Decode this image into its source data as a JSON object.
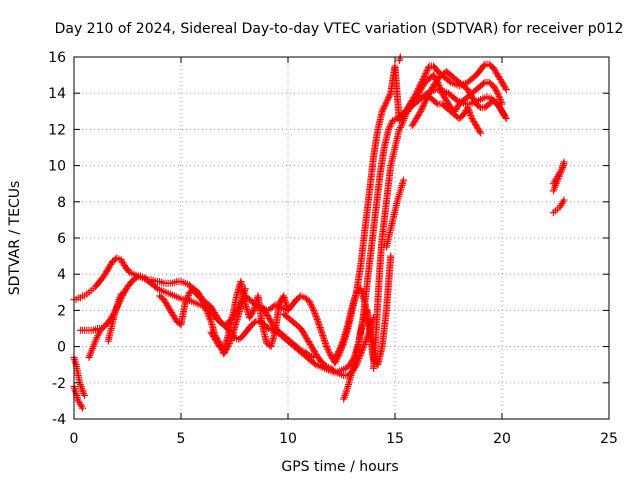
{
  "chart_data": {
    "type": "scatter",
    "title": "Day 210 of 2024, Sidereal Day-to-day VTEC variation (SDTVAR) for receiver p012",
    "xlabel": "GPS time / hours",
    "ylabel": "SDTVAR / TECUs",
    "xlim": [
      0,
      25
    ],
    "ylim": [
      -4,
      16
    ],
    "x_ticks": [
      "0",
      "5",
      "10",
      "15",
      "20",
      "25"
    ],
    "y_ticks": [
      "-4",
      "-2",
      "0",
      "2",
      "4",
      "6",
      "8",
      "10",
      "12",
      "14",
      "16"
    ],
    "grid": true,
    "marker": "+",
    "color": "#ff0000",
    "series": [
      {
        "x": [
          0.0,
          0.1,
          0.2,
          0.3,
          0.4,
          0.5,
          0.6,
          0.7,
          0.8,
          0.9,
          1.0,
          1.2,
          1.4,
          1.6,
          1.8,
          2.0,
          2.2,
          2.4,
          2.6,
          2.8,
          3.0,
          3.2,
          3.4,
          3.6,
          3.8,
          4.0,
          4.2,
          4.4,
          4.6,
          4.8,
          5.0,
          5.2,
          5.4,
          5.6,
          5.8,
          6.0,
          6.2,
          6.4,
          6.6,
          6.8,
          7.0,
          7.2,
          7.4,
          7.6,
          7.8,
          8.0,
          8.2,
          8.4,
          8.6,
          8.8,
          9.0,
          9.2,
          9.4,
          9.6,
          9.8,
          10.0,
          10.2,
          10.4,
          10.6,
          10.8,
          11.0,
          11.2,
          11.4,
          11.6,
          11.8,
          12.0,
          12.2,
          12.4,
          12.6,
          12.8,
          13.0,
          13.2,
          13.4,
          13.6,
          13.8,
          14.0,
          14.2,
          14.4,
          14.6,
          14.8,
          15.0,
          15.2,
          15.4,
          15.6,
          15.8,
          16.0,
          16.2,
          16.4,
          16.6,
          16.8,
          17.0,
          17.2,
          17.4,
          17.6,
          17.8,
          18.0,
          18.2,
          18.4,
          18.6,
          18.8,
          19.0,
          19.2,
          19.4,
          19.6,
          19.8,
          20.0,
          20.2
        ],
        "y": [
          2.6,
          2.6,
          2.7,
          2.7,
          2.8,
          2.8,
          2.9,
          3.0,
          3.1,
          3.2,
          3.3,
          3.6,
          3.9,
          4.3,
          4.7,
          4.9,
          4.8,
          4.4,
          4.1,
          4.0,
          3.9,
          3.8,
          3.7,
          3.7,
          3.6,
          3.6,
          3.5,
          3.5,
          3.5,
          3.6,
          3.6,
          3.5,
          3.4,
          3.1,
          2.8,
          2.6,
          2.4,
          2.2,
          1.8,
          1.4,
          1.2,
          1.3,
          1.6,
          2.0,
          2.4,
          2.8,
          2.6,
          2.4,
          2.2,
          2.1,
          2.0,
          2.1,
          2.3,
          2.2,
          2.1,
          2.0,
          2.3,
          2.6,
          2.8,
          2.7,
          2.5,
          2.0,
          1.4,
          0.7,
          0.0,
          -0.5,
          -0.9,
          -0.4,
          0.2,
          1.0,
          2.0,
          3.0,
          4.5,
          6.5,
          8.5,
          10.5,
          12.0,
          13.0,
          13.5,
          14.0,
          15.5,
          12.5,
          12.8,
          13.2,
          13.6,
          14.0,
          14.5,
          15.0,
          15.5,
          15.5,
          15.2,
          15.0,
          14.8,
          14.6,
          14.5,
          14.4,
          14.5,
          14.6,
          14.8,
          15.0,
          15.3,
          15.6,
          15.6,
          15.4,
          15.0,
          14.6,
          14.2
        ]
      },
      {
        "x": [
          0.3,
          0.5,
          0.7,
          0.9,
          1.1,
          1.3,
          1.5,
          1.7,
          1.9,
          2.1,
          2.3,
          2.5,
          2.7,
          2.9,
          3.1,
          3.3,
          3.5,
          3.7,
          3.9,
          4.1,
          4.3,
          4.5,
          4.7,
          4.9,
          5.1,
          5.3,
          5.5,
          5.7,
          5.9,
          6.1,
          6.3,
          6.5,
          6.7,
          6.9,
          7.1,
          7.3,
          7.5,
          7.7,
          7.9,
          8.1,
          8.3,
          8.5,
          8.7,
          8.9,
          9.1,
          9.3,
          9.5,
          9.7,
          9.9,
          10.1,
          10.3,
          10.5,
          10.7,
          10.9,
          11.1,
          11.3,
          11.5,
          11.7,
          11.9,
          12.1,
          12.3,
          12.5,
          12.7,
          12.9,
          13.1,
          13.3,
          13.5,
          13.7,
          13.9,
          14.1,
          14.3,
          14.5,
          14.7,
          14.9,
          15.1,
          15.3,
          15.5,
          15.7,
          15.9,
          16.1,
          16.3,
          16.5,
          16.7,
          16.9,
          17.1,
          17.3,
          17.5,
          17.7,
          17.9,
          18.1,
          18.3,
          18.5,
          18.7,
          18.9,
          19.1,
          19.3,
          19.5,
          19.7,
          19.9,
          20.1
        ],
        "y": [
          0.9,
          0.9,
          0.9,
          0.9,
          1.0,
          1.0,
          1.2,
          1.5,
          1.9,
          2.4,
          2.9,
          3.3,
          3.6,
          3.8,
          3.9,
          3.8,
          3.6,
          3.4,
          3.2,
          3.1,
          3.0,
          2.9,
          2.8,
          2.7,
          2.6,
          2.6,
          2.5,
          2.4,
          2.3,
          2.2,
          2.0,
          1.8,
          1.5,
          1.3,
          1.1,
          0.8,
          0.5,
          0.4,
          0.6,
          0.9,
          1.2,
          1.4,
          1.4,
          1.2,
          1.0,
          0.9,
          0.8,
          0.6,
          0.4,
          0.2,
          0.0,
          -0.2,
          -0.4,
          -0.6,
          -0.8,
          -1.0,
          -1.1,
          -1.2,
          -1.3,
          -1.4,
          -1.4,
          -1.3,
          -1.2,
          -1.0,
          -0.6,
          0.2,
          1.5,
          3.5,
          5.5,
          7.5,
          9.5,
          11.0,
          12.0,
          12.5,
          12.6,
          12.8,
          13.0,
          13.2,
          13.4,
          13.6,
          13.8,
          14.0,
          14.1,
          14.2,
          14.2,
          14.1,
          14.0,
          13.8,
          13.6,
          13.5,
          13.4,
          13.4,
          13.5,
          13.6,
          13.7,
          13.8,
          13.7,
          13.5,
          13.2,
          12.8
        ]
      },
      {
        "x": [
          0.0,
          0.05,
          0.1,
          0.15,
          0.2,
          0.25,
          0.3,
          0.35,
          0.4,
          0.45,
          0.5
        ],
        "y": [
          -0.6,
          -0.8,
          -1.0,
          -1.3,
          -1.6,
          -1.9,
          -2.1,
          -2.3,
          -2.4,
          -2.6,
          -2.7
        ]
      },
      {
        "x": [
          0.0,
          0.05,
          0.1,
          0.15,
          0.2,
          0.25,
          0.3,
          0.35,
          0.4
        ],
        "y": [
          -2.2,
          -2.4,
          -2.6,
          -2.8,
          -3.0,
          -3.1,
          -3.2,
          -3.3,
          -3.4
        ]
      },
      {
        "x": [
          0.7,
          0.8,
          0.9,
          1.0,
          1.1,
          1.2,
          1.3
        ],
        "y": [
          -0.6,
          -0.3,
          0.0,
          0.3,
          0.6,
          0.8,
          1.0
        ]
      },
      {
        "x": [
          1.6,
          1.7,
          1.8,
          1.9,
          2.0,
          2.1,
          2.2
        ],
        "y": [
          0.3,
          0.8,
          1.3,
          1.8,
          2.2,
          2.6,
          2.9
        ]
      },
      {
        "x": [
          4.0,
          4.2,
          4.4,
          4.6,
          4.8,
          5.0,
          5.2,
          5.4,
          5.6,
          5.8,
          6.0,
          6.2,
          6.4,
          6.6,
          6.8,
          7.0,
          7.2,
          7.4,
          7.6,
          7.8,
          8.0
        ],
        "y": [
          2.8,
          2.6,
          2.2,
          1.8,
          1.4,
          1.2,
          2.4,
          3.0,
          3.2,
          3.0,
          2.6,
          2.0,
          1.4,
          0.6,
          0.2,
          -0.4,
          0.0,
          0.6,
          1.4,
          2.2,
          3.2
        ]
      },
      {
        "x": [
          6.4,
          6.6,
          6.8,
          7.0,
          7.2,
          7.4,
          7.6,
          7.8,
          8.0,
          8.2,
          8.4,
          8.6,
          8.8,
          9.0,
          9.2,
          9.4,
          9.6,
          9.8,
          10.0
        ],
        "y": [
          0.8,
          0.4,
          0.0,
          -0.2,
          0.6,
          1.6,
          2.8,
          3.6,
          2.4,
          1.6,
          2.0,
          2.8,
          1.2,
          0.2,
          0.0,
          0.8,
          2.4,
          2.8,
          2.0
        ]
      },
      {
        "x": [
          8.8,
          9.0,
          9.2,
          9.4,
          9.6,
          9.8,
          10.0,
          10.2,
          10.4,
          10.6,
          10.8,
          11.0,
          11.2
        ],
        "y": [
          2.2,
          1.8,
          1.4,
          1.0,
          0.8,
          0.6,
          0.4,
          0.2,
          0.0,
          -0.2,
          -0.3,
          -0.5,
          -0.6
        ]
      },
      {
        "x": [
          9.8,
          10.0,
          10.2,
          10.4,
          10.6,
          10.8,
          11.0,
          11.2,
          11.4,
          11.6,
          11.8,
          12.0,
          12.2,
          12.4,
          12.6,
          12.8,
          13.0,
          13.2,
          13.4,
          13.6,
          13.8,
          14.0
        ],
        "y": [
          1.8,
          1.6,
          1.4,
          1.2,
          1.0,
          0.6,
          0.2,
          -0.2,
          -0.6,
          -0.9,
          -1.1,
          -1.2,
          -1.4,
          -1.5,
          -1.6,
          -1.6,
          -1.4,
          -1.0,
          -0.4,
          0.2,
          0.8,
          1.6
        ]
      },
      {
        "x": [
          12.2,
          12.4,
          12.6,
          12.8,
          13.0,
          13.2,
          13.4,
          13.6,
          13.8,
          14.0,
          14.2,
          14.4,
          14.6,
          14.8
        ],
        "y": [
          -0.6,
          -0.2,
          0.4,
          1.2,
          2.2,
          3.0,
          3.2,
          2.4,
          1.0,
          -0.6,
          -1.0,
          0.0,
          2.0,
          5.0
        ]
      },
      {
        "x": [
          12.6,
          12.7,
          12.8,
          12.9,
          13.0,
          13.1,
          13.2,
          13.3,
          13.4,
          13.5,
          13.6,
          13.7,
          13.8,
          13.9,
          14.0
        ],
        "y": [
          -2.9,
          -2.6,
          -2.2,
          -1.8,
          -1.4,
          -1.0,
          -0.4,
          0.2,
          0.8,
          1.4,
          1.8,
          2.0,
          1.4,
          0.2,
          -0.8
        ]
      },
      {
        "x": [
          14.0,
          14.1,
          14.2,
          14.3,
          14.4,
          14.5,
          14.6,
          14.7,
          14.8,
          14.9,
          15.0,
          15.1,
          15.2,
          15.3,
          15.4,
          15.5,
          15.6
        ],
        "y": [
          -1.2,
          0.5,
          2.5,
          4.5,
          6.0,
          7.0,
          8.0,
          9.0,
          10.0,
          10.5,
          11.0,
          11.5,
          12.0,
          12.2,
          12.5,
          12.8,
          13.0
        ]
      },
      {
        "x": [
          14.6,
          14.7,
          14.8,
          14.9,
          15.0,
          15.1,
          15.2,
          15.3,
          15.4
        ],
        "y": [
          5.5,
          6.0,
          6.5,
          7.0,
          7.5,
          8.0,
          8.4,
          8.8,
          9.2
        ]
      },
      {
        "x": [
          15.6,
          15.8,
          16.0,
          16.2,
          16.4,
          16.6,
          16.8,
          17.0,
          17.2,
          17.4,
          17.6,
          17.8,
          18.0,
          18.2,
          18.4,
          18.6,
          18.8,
          19.0,
          19.2,
          19.4,
          19.6,
          19.8,
          20.0
        ],
        "y": [
          13.0,
          13.4,
          13.8,
          14.2,
          14.6,
          14.8,
          15.0,
          14.6,
          14.0,
          13.6,
          13.2,
          13.0,
          13.4,
          13.6,
          13.8,
          14.0,
          14.2,
          14.4,
          14.6,
          14.6,
          14.4,
          14.0,
          13.4
        ]
      },
      {
        "x": [
          15.8,
          16.0,
          16.2,
          16.4,
          16.6,
          16.8,
          17.0,
          17.2,
          17.4,
          17.6,
          17.8,
          18.0,
          18.2,
          18.4,
          18.6,
          18.8,
          19.0,
          19.2,
          19.4,
          19.6,
          19.8,
          20.0,
          20.2
        ],
        "y": [
          12.2,
          12.6,
          13.0,
          13.5,
          14.0,
          14.4,
          14.8,
          15.0,
          15.2,
          15.0,
          14.8,
          14.6,
          14.4,
          14.2,
          13.8,
          13.4,
          13.2,
          13.2,
          13.4,
          13.6,
          13.4,
          13.0,
          12.6
        ]
      },
      {
        "x": [
          16.6,
          16.8,
          17.0,
          17.2,
          17.4,
          17.6,
          17.8,
          18.0,
          18.2,
          18.4,
          18.6,
          18.8,
          19.0
        ],
        "y": [
          13.8,
          13.6,
          13.4,
          13.4,
          13.2,
          13.0,
          12.8,
          12.6,
          12.8,
          13.2,
          12.6,
          12.2,
          11.8
        ]
      },
      {
        "x": [
          22.4,
          22.5,
          22.6,
          22.7,
          22.8,
          22.9
        ],
        "y": [
          9.0,
          9.2,
          9.4,
          9.6,
          9.8,
          10.2
        ]
      },
      {
        "x": [
          22.4,
          22.5,
          22.6,
          22.7,
          22.8,
          22.9
        ],
        "y": [
          8.6,
          8.9,
          9.2,
          9.5,
          9.8,
          10.1
        ]
      },
      {
        "x": [
          22.4,
          22.5,
          22.6,
          22.7,
          22.8,
          22.9
        ],
        "y": [
          7.4,
          7.5,
          7.6,
          7.7,
          7.9,
          8.1
        ]
      },
      {
        "x": [
          15.2,
          15.25
        ],
        "y": [
          15.8,
          16.0
        ]
      }
    ]
  }
}
